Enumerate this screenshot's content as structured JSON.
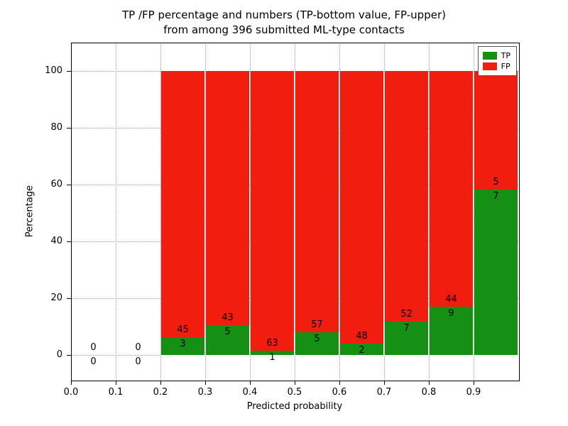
{
  "chart_data": {
    "type": "bar",
    "subtype": "stacked-percentage-histogram",
    "title_line1": "TP /FP percentage and numbers (TP-bottom value, FP-upper)",
    "title_line2": "from among 396 submitted ML-type contacts",
    "xlabel": "Predicted probability",
    "ylabel": "Percentage",
    "xlim": [
      0.0,
      1.0
    ],
    "ylim": [
      -8.75,
      110
    ],
    "xticks": [
      "0.0",
      "0.1",
      "0.2",
      "0.3",
      "0.4",
      "0.5",
      "0.6",
      "0.7",
      "0.8",
      "0.9"
    ],
    "yticks": [
      "0",
      "20",
      "40",
      "60",
      "80",
      "100"
    ],
    "grid": "dotted",
    "legend_position": "upper right",
    "legend": [
      {
        "label": "TP",
        "color_key": "tp"
      },
      {
        "label": "FP",
        "color_key": "fp"
      }
    ],
    "colors": {
      "tp": "#159015",
      "fp": "#f11d0e"
    },
    "bin_width": 0.1,
    "bins": [
      {
        "x0": 0.0,
        "tp": 0,
        "fp": 0
      },
      {
        "x0": 0.1,
        "tp": 0,
        "fp": 0
      },
      {
        "x0": 0.2,
        "tp": 3,
        "fp": 45
      },
      {
        "x0": 0.3,
        "tp": 5,
        "fp": 43
      },
      {
        "x0": 0.4,
        "tp": 1,
        "fp": 63
      },
      {
        "x0": 0.5,
        "tp": 5,
        "fp": 57
      },
      {
        "x0": 0.6,
        "tp": 2,
        "fp": 48
      },
      {
        "x0": 0.7,
        "tp": 7,
        "fp": 52
      },
      {
        "x0": 0.8,
        "tp": 9,
        "fp": 44
      },
      {
        "x0": 0.9,
        "tp": 7,
        "fp": 5
      }
    ],
    "note": "Bars are stacked to 100%; green TP segment height = tp/(tp+fp)*100; labels show raw counts, FP above TP"
  }
}
